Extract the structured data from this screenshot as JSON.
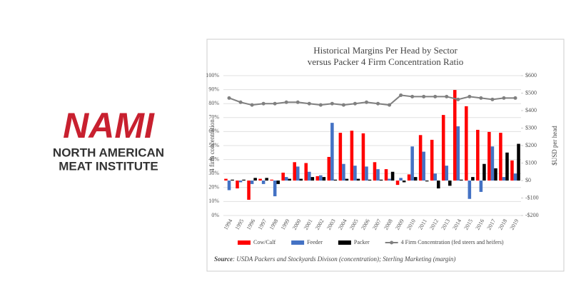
{
  "logo": {
    "mark": "NAMI",
    "line1": "NORTH AMERICAN",
    "line2": "MEAT INSTITUTE"
  },
  "chart_data": {
    "type": "bar",
    "title": "Historical Margins Per Head by Sector",
    "subtitle": "versus Packer 4 Firm Concentration Ratio",
    "y_label": "4 firm concentration",
    "y2_label": "$USD per head",
    "source_label": "Source",
    "source_text": ": USDA Packers and Stockyards Divison (concentration); Sterling Marketing (margin)",
    "categories": [
      "1994",
      "1995",
      "1996",
      "1997",
      "1998",
      "1999",
      "2000",
      "2001",
      "2002",
      "2003",
      "2004",
      "2005",
      "2006",
      "2007",
      "2008",
      "2009",
      "2010",
      "2011",
      "2012",
      "2013",
      "2014",
      "2015",
      "2016",
      "2017",
      "2018",
      "2019"
    ],
    "ylim": [
      0,
      100
    ],
    "yticks": [
      {
        "value": 0,
        "label": "0%"
      },
      {
        "value": 10,
        "label": "10%"
      },
      {
        "value": 20,
        "label": "20%"
      },
      {
        "value": 30,
        "label": "30%"
      },
      {
        "value": 40,
        "label": "40%"
      },
      {
        "value": 50,
        "label": "50%"
      },
      {
        "value": 60,
        "label": "60%"
      },
      {
        "value": 70,
        "label": "70%"
      },
      {
        "value": 80,
        "label": "80%"
      },
      {
        "value": 90,
        "label": "90%"
      },
      {
        "value": 100,
        "label": "100%"
      }
    ],
    "y2lim": [
      -200,
      600
    ],
    "y2ticks": [
      {
        "value": -200,
        "label": "-$200"
      },
      {
        "value": -100,
        "label": "-$100"
      },
      {
        "value": 0,
        "label": "$0"
      },
      {
        "value": 100,
        "label": "$100"
      },
      {
        "value": 200,
        "label": "$200"
      },
      {
        "value": 300,
        "label": "$300"
      },
      {
        "value": 400,
        "label": "$400"
      },
      {
        "value": 500,
        "label": "$500"
      },
      {
        "value": 600,
        "label": "$600"
      }
    ],
    "grid": true,
    "series": [
      {
        "name": "Cow/Calf",
        "type": "bar",
        "axis": "y2",
        "color": "#ff0000",
        "values": [
          10,
          -45,
          -110,
          10,
          5,
          45,
          105,
          100,
          25,
          135,
          273,
          285,
          270,
          105,
          65,
          -25,
          35,
          260,
          233,
          375,
          518,
          425,
          290,
          278,
          273,
          115
        ]
      },
      {
        "name": "Feeder",
        "type": "bar",
        "axis": "y2",
        "color": "#4472c4",
        "values": [
          -55,
          -10,
          -20,
          -20,
          -90,
          20,
          80,
          50,
          30,
          330,
          95,
          85,
          80,
          65,
          10,
          15,
          195,
          165,
          40,
          85,
          310,
          -105,
          -65,
          195,
          20,
          40
        ]
      },
      {
        "name": "Packer",
        "type": "bar",
        "axis": "y2",
        "color": "#000000",
        "values": [
          5,
          5,
          15,
          15,
          -20,
          10,
          10,
          20,
          20,
          5,
          10,
          10,
          5,
          5,
          50,
          -10,
          20,
          -5,
          -45,
          -30,
          5,
          20,
          95,
          70,
          160,
          210
        ]
      },
      {
        "name": "4 Firm Concentration (fed steers and heifers)",
        "type": "line",
        "axis": "y",
        "color": "#808080",
        "values": [
          84,
          81,
          79,
          80,
          80,
          81,
          81,
          80,
          79,
          80,
          79,
          80,
          81,
          80,
          79,
          86,
          85,
          85,
          85,
          85,
          83,
          85,
          84,
          83,
          84,
          84
        ]
      }
    ]
  }
}
